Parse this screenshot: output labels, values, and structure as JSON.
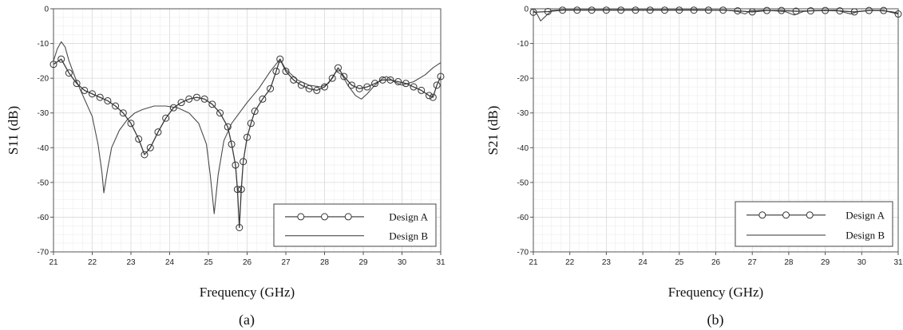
{
  "chart_data": [
    {
      "type": "line",
      "caption": "(a)",
      "xlabel": "Frequency (GHz)",
      "ylabel": "S11 (dB)",
      "xlim": [
        21,
        31
      ],
      "ylim": [
        -70,
        0
      ],
      "xticks": [
        21,
        22,
        23,
        24,
        25,
        26,
        27,
        28,
        29,
        30,
        31
      ],
      "yticks": [
        0,
        -10,
        -20,
        -30,
        -40,
        -50,
        -60,
        -70
      ],
      "grid": true,
      "legend_position": "bottom-right",
      "series": [
        {
          "name": "Design A",
          "marker": "circle",
          "points": [
            [
              21.0,
              -16
            ],
            [
              21.2,
              -14.5
            ],
            [
              21.4,
              -18.5
            ],
            [
              21.6,
              -21.5
            ],
            [
              21.8,
              -23.5
            ],
            [
              22.0,
              -24.5
            ],
            [
              22.2,
              -25.5
            ],
            [
              22.4,
              -26.5
            ],
            [
              22.6,
              -28
            ],
            [
              22.8,
              -30
            ],
            [
              23.0,
              -33
            ],
            [
              23.2,
              -37.5
            ],
            [
              23.35,
              -42
            ],
            [
              23.5,
              -40
            ],
            [
              23.7,
              -35.5
            ],
            [
              23.9,
              -31.5
            ],
            [
              24.1,
              -28.5
            ],
            [
              24.3,
              -27
            ],
            [
              24.5,
              -26
            ],
            [
              24.7,
              -25.5
            ],
            [
              24.9,
              -26
            ],
            [
              25.1,
              -27.5
            ],
            [
              25.3,
              -30
            ],
            [
              25.5,
              -34
            ],
            [
              25.6,
              -39
            ],
            [
              25.7,
              -45
            ],
            [
              25.75,
              -52
            ],
            [
              25.8,
              -63
            ],
            [
              25.85,
              -52
            ],
            [
              25.9,
              -44
            ],
            [
              26.0,
              -37
            ],
            [
              26.1,
              -33
            ],
            [
              26.2,
              -29.5
            ],
            [
              26.4,
              -26
            ],
            [
              26.6,
              -23
            ],
            [
              26.75,
              -18
            ],
            [
              26.85,
              -14.5
            ],
            [
              27.0,
              -18
            ],
            [
              27.2,
              -20.5
            ],
            [
              27.4,
              -22
            ],
            [
              27.6,
              -23
            ],
            [
              27.8,
              -23.5
            ],
            [
              28.0,
              -22.5
            ],
            [
              28.2,
              -20
            ],
            [
              28.35,
              -17
            ],
            [
              28.5,
              -19.5
            ],
            [
              28.7,
              -22
            ],
            [
              28.9,
              -23
            ],
            [
              29.1,
              -22.5
            ],
            [
              29.3,
              -21.5
            ],
            [
              29.5,
              -20.5
            ],
            [
              29.7,
              -20.5
            ],
            [
              29.9,
              -21
            ],
            [
              30.1,
              -21.5
            ],
            [
              30.3,
              -22.5
            ],
            [
              30.5,
              -23.5
            ],
            [
              30.7,
              -25
            ],
            [
              30.8,
              -25.5
            ],
            [
              30.9,
              -22
            ],
            [
              31.0,
              -19.5
            ]
          ]
        },
        {
          "name": "Design B",
          "marker": "none",
          "points": [
            [
              21.0,
              -15
            ],
            [
              21.1,
              -11.5
            ],
            [
              21.2,
              -9.5
            ],
            [
              21.3,
              -11
            ],
            [
              21.4,
              -15
            ],
            [
              21.6,
              -21
            ],
            [
              21.8,
              -26
            ],
            [
              22.0,
              -31
            ],
            [
              22.15,
              -39
            ],
            [
              22.25,
              -47
            ],
            [
              22.3,
              -53
            ],
            [
              22.4,
              -46
            ],
            [
              22.5,
              -40
            ],
            [
              22.7,
              -35
            ],
            [
              22.9,
              -32
            ],
            [
              23.1,
              -30
            ],
            [
              23.3,
              -29
            ],
            [
              23.6,
              -28
            ],
            [
              23.9,
              -28
            ],
            [
              24.2,
              -28.5
            ],
            [
              24.5,
              -30
            ],
            [
              24.75,
              -33
            ],
            [
              24.95,
              -39
            ],
            [
              25.05,
              -48
            ],
            [
              25.15,
              -59
            ],
            [
              25.25,
              -48
            ],
            [
              25.4,
              -38
            ],
            [
              25.6,
              -33
            ],
            [
              25.8,
              -30
            ],
            [
              26.0,
              -27
            ],
            [
              26.3,
              -23
            ],
            [
              26.6,
              -18
            ],
            [
              26.85,
              -14.5
            ],
            [
              27.0,
              -17.5
            ],
            [
              27.3,
              -20.5
            ],
            [
              27.6,
              -22
            ],
            [
              27.9,
              -22.5
            ],
            [
              28.1,
              -21.5
            ],
            [
              28.3,
              -18
            ],
            [
              28.45,
              -19
            ],
            [
              28.6,
              -22
            ],
            [
              28.8,
              -25
            ],
            [
              28.95,
              -26
            ],
            [
              29.1,
              -24.5
            ],
            [
              29.3,
              -22
            ],
            [
              29.5,
              -20
            ],
            [
              29.6,
              -19.5
            ],
            [
              29.8,
              -21
            ],
            [
              30.0,
              -22
            ],
            [
              30.3,
              -21
            ],
            [
              30.6,
              -19
            ],
            [
              30.8,
              -17
            ],
            [
              31.0,
              -15.5
            ]
          ]
        }
      ]
    },
    {
      "type": "line",
      "caption": "(b)",
      "xlabel": "Frequency (GHz)",
      "ylabel": "S21 (dB)",
      "xlim": [
        21,
        31
      ],
      "ylim": [
        -70,
        0
      ],
      "xticks": [
        21,
        22,
        23,
        24,
        25,
        26,
        27,
        28,
        29,
        30,
        31
      ],
      "yticks": [
        0,
        -10,
        -20,
        -30,
        -40,
        -50,
        -60,
        -70
      ],
      "grid": true,
      "legend_position": "bottom-right",
      "series": [
        {
          "name": "Design A",
          "marker": "circle",
          "points": [
            [
              21.0,
              -1
            ],
            [
              21.4,
              -0.8
            ],
            [
              21.8,
              -0.4
            ],
            [
              22.2,
              -0.4
            ],
            [
              22.6,
              -0.4
            ],
            [
              23.0,
              -0.4
            ],
            [
              23.4,
              -0.4
            ],
            [
              23.8,
              -0.4
            ],
            [
              24.2,
              -0.4
            ],
            [
              24.6,
              -0.4
            ],
            [
              25.0,
              -0.4
            ],
            [
              25.4,
              -0.4
            ],
            [
              25.8,
              -0.4
            ],
            [
              26.2,
              -0.4
            ],
            [
              26.6,
              -0.6
            ],
            [
              27.0,
              -0.9
            ],
            [
              27.4,
              -0.5
            ],
            [
              27.8,
              -0.5
            ],
            [
              28.2,
              -0.7
            ],
            [
              28.6,
              -0.6
            ],
            [
              29.0,
              -0.5
            ],
            [
              29.4,
              -0.6
            ],
            [
              29.8,
              -0.9
            ],
            [
              30.2,
              -0.5
            ],
            [
              30.6,
              -0.5
            ],
            [
              31.0,
              -1.5
            ]
          ]
        },
        {
          "name": "Design B",
          "marker": "none",
          "points": [
            [
              21.0,
              -0.5
            ],
            [
              21.1,
              -1.5
            ],
            [
              21.2,
              -3.5
            ],
            [
              21.35,
              -2
            ],
            [
              21.5,
              -0.5
            ],
            [
              21.8,
              -0.3
            ],
            [
              22.5,
              -0.3
            ],
            [
              23.5,
              -0.3
            ],
            [
              24.5,
              -0.3
            ],
            [
              25.5,
              -0.3
            ],
            [
              26.3,
              -0.4
            ],
            [
              26.6,
              -0.8
            ],
            [
              26.8,
              -1.5
            ],
            [
              26.95,
              -0.6
            ],
            [
              27.3,
              -0.4
            ],
            [
              27.9,
              -0.8
            ],
            [
              28.15,
              -1.8
            ],
            [
              28.4,
              -0.8
            ],
            [
              28.7,
              -0.5
            ],
            [
              29.3,
              -0.4
            ],
            [
              29.7,
              -1.5
            ],
            [
              29.9,
              -0.8
            ],
            [
              30.3,
              -0.4
            ],
            [
              30.8,
              -0.8
            ],
            [
              31.0,
              -1.2
            ]
          ]
        }
      ]
    }
  ]
}
